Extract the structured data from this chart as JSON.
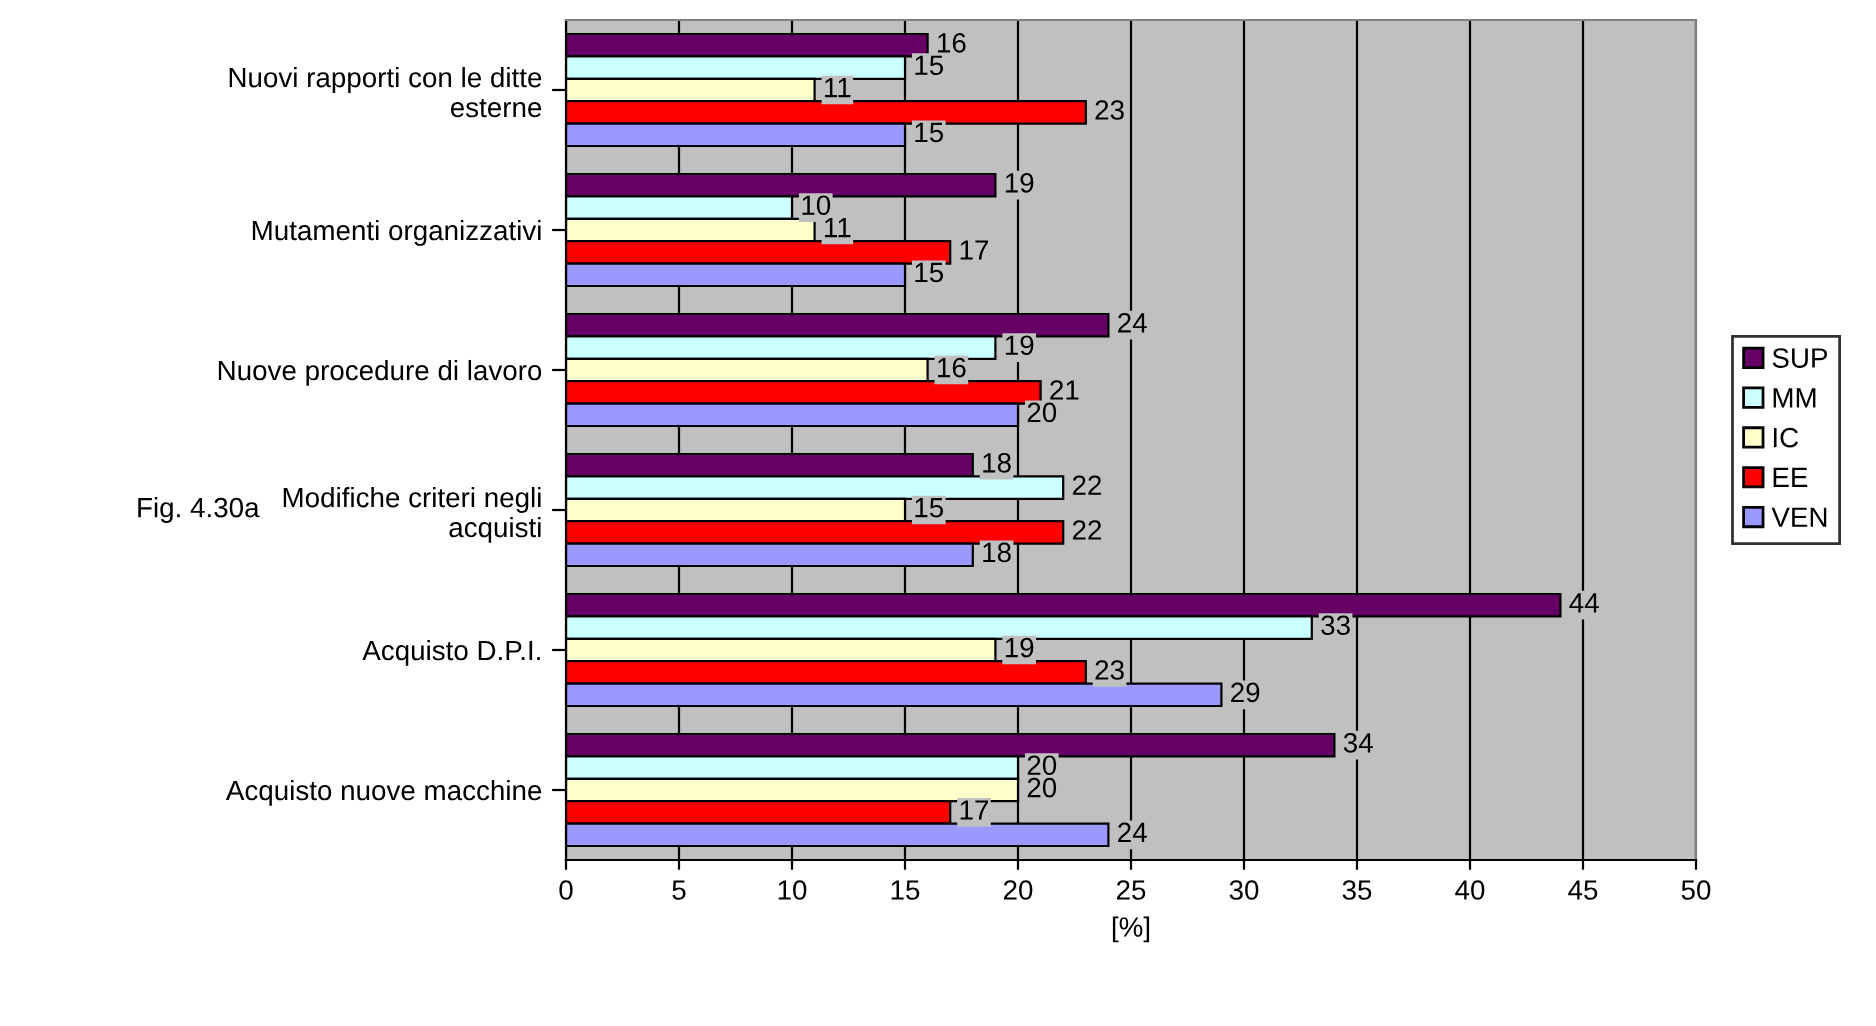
{
  "chart_data": {
    "type": "bar",
    "orientation": "horizontal",
    "categories": [
      "Nuovi rapporti con le ditte\nesterne",
      "Mutamenti organizzativi",
      "Nuove procedure di lavoro",
      "Modifiche criteri negli\nacquisti",
      "Acquisto D.P.I.",
      "Acquisto nuove macchine"
    ],
    "series": [
      {
        "name": "SUP",
        "color": "#660066",
        "values": [
          16,
          19,
          24,
          18,
          44,
          34
        ]
      },
      {
        "name": "MM",
        "color": "#ccffff",
        "values": [
          15,
          10,
          19,
          22,
          33,
          20
        ]
      },
      {
        "name": "IC",
        "color": "#ffffcc",
        "values": [
          11,
          11,
          16,
          15,
          19,
          20
        ]
      },
      {
        "name": "EE",
        "color": "#ff0000",
        "values": [
          23,
          17,
          21,
          22,
          23,
          17
        ]
      },
      {
        "name": "VEN",
        "color": "#9999ff",
        "values": [
          15,
          15,
          20,
          18,
          29,
          24
        ]
      }
    ],
    "xlabel": "[%]",
    "xlim": [
      0,
      50
    ],
    "xticks": [
      0,
      5,
      10,
      15,
      20,
      25,
      30,
      35,
      40,
      45,
      50
    ],
    "grid": "x",
    "legend": "right",
    "data_labels": true,
    "annotations": [
      "Fig. 4.30a"
    ]
  }
}
